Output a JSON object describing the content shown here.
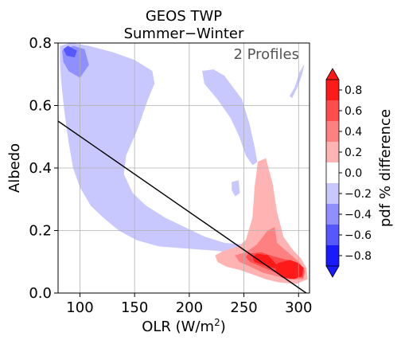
{
  "chart_data": {
    "type": "heatmap",
    "title": [
      "GEOS TWP",
      "Summer−Winter"
    ],
    "annotation": "2 Profiles",
    "xlabel": "OLR (W/m",
    "xlabel_sup": "2",
    "xlabel_close": ")",
    "ylabel": "Albedo",
    "xlim": [
      80,
      310
    ],
    "ylim": [
      0.0,
      0.8
    ],
    "xticks": [
      100,
      150,
      200,
      250,
      300
    ],
    "yticks": [
      0.0,
      0.2,
      0.4,
      0.6,
      0.8
    ],
    "xtick_labels": [
      "100",
      "150",
      "200",
      "250",
      "300"
    ],
    "ytick_labels": [
      "0.0",
      "0.2",
      "0.4",
      "0.6",
      "0.8"
    ],
    "grid": true,
    "colorbar": {
      "label": "pdf % difference",
      "ticks": [
        "0.8",
        "0.6",
        "0.4",
        "0.2",
        "0.0",
        "−0.2",
        "−0.4",
        "−0.6",
        "−0.8"
      ],
      "levels": [
        0.8,
        0.6,
        0.4,
        0.2,
        0.0,
        -0.2,
        -0.4,
        -0.6,
        -0.8
      ],
      "colors": [
        "#ff1a1a",
        "#ff4d4d",
        "#ff8080",
        "#ffb3b3",
        "#ffffff",
        "#c8c8ff",
        "#8f8fff",
        "#5757ff",
        "#1a1aff"
      ],
      "extend": "both"
    },
    "regression_line": {
      "x": [
        80,
        307
      ],
      "y": [
        0.55,
        0.0
      ]
    },
    "regions": [
      {
        "level": -0.2,
        "color": "#c8c8ff",
        "points": [
          [
            82,
            0.79
          ],
          [
            92,
            0.8
          ],
          [
            108,
            0.79
          ],
          [
            130,
            0.77
          ],
          [
            150,
            0.745
          ],
          [
            166,
            0.71
          ],
          [
            168,
            0.67
          ],
          [
            162,
            0.62
          ],
          [
            152,
            0.52
          ],
          [
            142,
            0.44
          ],
          [
            140,
            0.38
          ],
          [
            148,
            0.32
          ],
          [
            160,
            0.28
          ],
          [
            178,
            0.24
          ],
          [
            196,
            0.21
          ],
          [
            214,
            0.18
          ],
          [
            232,
            0.16
          ],
          [
            250,
            0.155
          ],
          [
            262,
            0.15
          ],
          [
            268,
            0.14
          ],
          [
            262,
            0.125
          ],
          [
            244,
            0.125
          ],
          [
            228,
            0.135
          ],
          [
            210,
            0.14
          ],
          [
            190,
            0.145
          ],
          [
            172,
            0.15
          ],
          [
            152,
            0.17
          ],
          [
            136,
            0.2
          ],
          [
            122,
            0.24
          ],
          [
            110,
            0.28
          ],
          [
            100,
            0.34
          ],
          [
            94,
            0.4
          ],
          [
            90,
            0.48
          ],
          [
            86,
            0.58
          ],
          [
            83,
            0.68
          ],
          [
            82,
            0.74
          ]
        ]
      },
      {
        "level": -0.2,
        "color": "#c8c8ff",
        "points": [
          [
            292,
            0.63
          ],
          [
            297,
            0.66
          ],
          [
            301,
            0.705
          ],
          [
            305,
            0.73
          ],
          [
            303,
            0.7
          ],
          [
            299,
            0.66
          ],
          [
            294,
            0.625
          ]
        ]
      },
      {
        "level": -0.4,
        "color": "#8f8fff",
        "points": [
          [
            84,
            0.775
          ],
          [
            94,
            0.79
          ],
          [
            104,
            0.78
          ],
          [
            108,
            0.73
          ],
          [
            100,
            0.69
          ],
          [
            90,
            0.71
          ],
          [
            85,
            0.74
          ]
        ]
      },
      {
        "level": -0.6,
        "color": "#5757ff",
        "points": [
          [
            85,
            0.78
          ],
          [
            89,
            0.79
          ],
          [
            97,
            0.775
          ],
          [
            95,
            0.755
          ],
          [
            88,
            0.76
          ]
        ]
      },
      {
        "level": -0.2,
        "color": "#c8c8ff",
        "points": [
          [
            212,
            0.71
          ],
          [
            222,
            0.715
          ],
          [
            232,
            0.695
          ],
          [
            248,
            0.62
          ],
          [
            255,
            0.54
          ],
          [
            260,
            0.46
          ],
          [
            262,
            0.42
          ],
          [
            258,
            0.41
          ],
          [
            252,
            0.44
          ],
          [
            246,
            0.5
          ],
          [
            238,
            0.56
          ],
          [
            226,
            0.62
          ],
          [
            214,
            0.67
          ]
        ]
      },
      {
        "level": -0.2,
        "color": "#c8c8ff",
        "points": [
          [
            239,
            0.355
          ],
          [
            245,
            0.36
          ],
          [
            246,
            0.32
          ],
          [
            242,
            0.31
          ],
          [
            239,
            0.33
          ]
        ]
      },
      {
        "level": 0.2,
        "color": "#ffb3b3",
        "points": [
          [
            246,
            0.15
          ],
          [
            252,
            0.17
          ],
          [
            258,
            0.24
          ],
          [
            260,
            0.34
          ],
          [
            263,
            0.42
          ],
          [
            270,
            0.43
          ],
          [
            276,
            0.35
          ],
          [
            280,
            0.26
          ],
          [
            286,
            0.18
          ],
          [
            294,
            0.14
          ],
          [
            302,
            0.11
          ],
          [
            307,
            0.08
          ],
          [
            308,
            0.045
          ],
          [
            298,
            0.03
          ],
          [
            282,
            0.035
          ],
          [
            270,
            0.045
          ],
          [
            258,
            0.06
          ],
          [
            246,
            0.075
          ],
          [
            234,
            0.085
          ],
          [
            226,
            0.1
          ],
          [
            224,
            0.12
          ],
          [
            232,
            0.135
          ]
        ]
      },
      {
        "level": 0.4,
        "color": "#ff8080",
        "points": [
          [
            252,
            0.13
          ],
          [
            262,
            0.155
          ],
          [
            272,
            0.2
          ],
          [
            278,
            0.21
          ],
          [
            280,
            0.16
          ],
          [
            290,
            0.13
          ],
          [
            300,
            0.1
          ],
          [
            306,
            0.07
          ],
          [
            304,
            0.045
          ],
          [
            292,
            0.045
          ],
          [
            280,
            0.055
          ],
          [
            268,
            0.065
          ],
          [
            256,
            0.085
          ],
          [
            246,
            0.1
          ],
          [
            242,
            0.12
          ]
        ]
      },
      {
        "level": 0.6,
        "color": "#ff4d4d",
        "points": [
          [
            254,
            0.125
          ],
          [
            266,
            0.13
          ],
          [
            274,
            0.12
          ],
          [
            284,
            0.11
          ],
          [
            296,
            0.1
          ],
          [
            305,
            0.08
          ],
          [
            304,
            0.05
          ],
          [
            292,
            0.05
          ],
          [
            280,
            0.065
          ],
          [
            266,
            0.085
          ],
          [
            256,
            0.1
          ],
          [
            252,
            0.115
          ]
        ]
      },
      {
        "level": 0.8,
        "color": "#ff1a1a",
        "points": [
          [
            258,
            0.115
          ],
          [
            262,
            0.125
          ],
          [
            272,
            0.12
          ],
          [
            280,
            0.09
          ],
          [
            278,
            0.08
          ],
          [
            268,
            0.09
          ],
          [
            260,
            0.1
          ]
        ]
      },
      {
        "level": 0.8,
        "color": "#ff1a1a",
        "points": [
          [
            281,
            0.095
          ],
          [
            292,
            0.105
          ],
          [
            300,
            0.095
          ],
          [
            304,
            0.08
          ],
          [
            303,
            0.055
          ],
          [
            296,
            0.045
          ],
          [
            285,
            0.05
          ],
          [
            280,
            0.065
          ],
          [
            279,
            0.08
          ]
        ]
      }
    ]
  }
}
